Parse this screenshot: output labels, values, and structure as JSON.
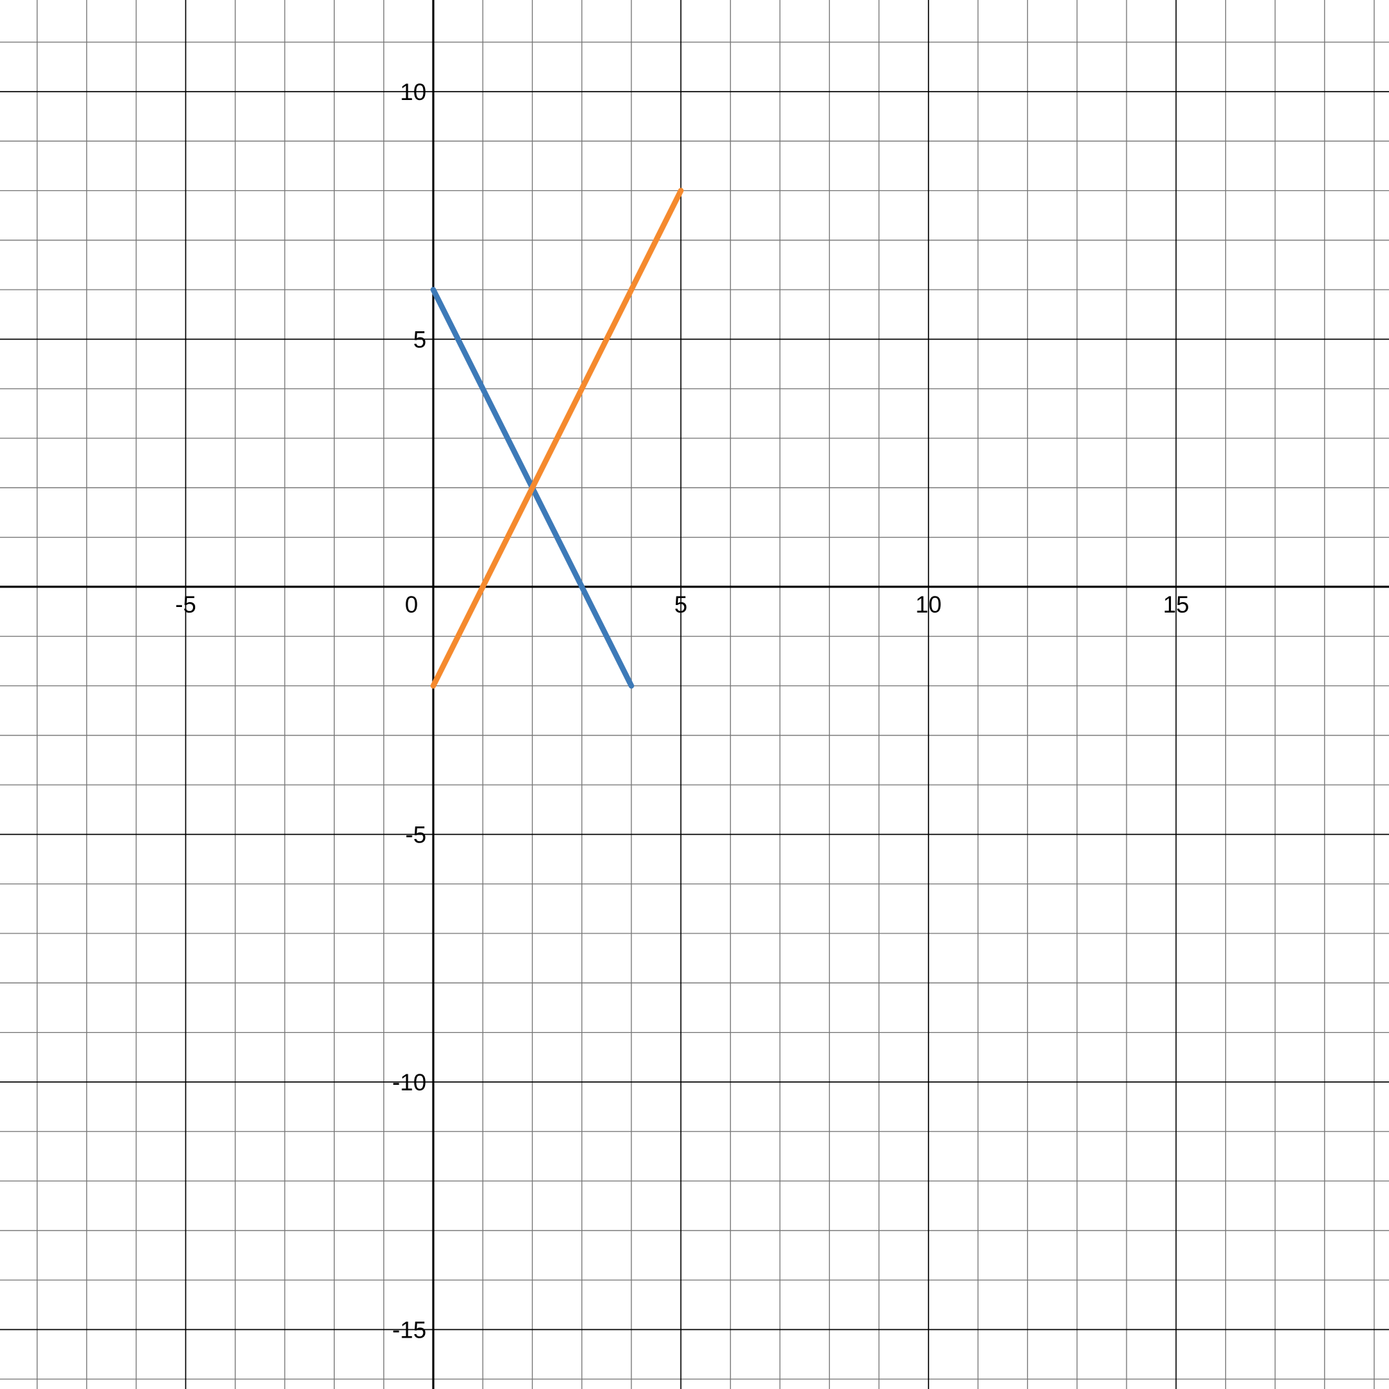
{
  "chart_data": {
    "type": "line",
    "title": "",
    "xlabel": "",
    "ylabel": "",
    "xlim": [
      -8.75,
      19.3
    ],
    "ylim": [
      -16.2,
      11.85
    ],
    "grid": true,
    "minor_step": 1,
    "major_step": 5,
    "x_ticks": [
      {
        "value": -5,
        "label": "-5"
      },
      {
        "value": 0,
        "label": "0"
      },
      {
        "value": 5,
        "label": "5"
      },
      {
        "value": 10,
        "label": "10"
      },
      {
        "value": 15,
        "label": "15"
      }
    ],
    "y_ticks": [
      {
        "value": 10,
        "label": "10"
      },
      {
        "value": 5,
        "label": "5"
      },
      {
        "value": -5,
        "label": "-5"
      },
      {
        "value": -10,
        "label": "-10"
      },
      {
        "value": -15,
        "label": "-15"
      }
    ],
    "series": [
      {
        "color": "#3d7ab8",
        "x": [
          0,
          4
        ],
        "y": [
          6,
          -2
        ]
      },
      {
        "color": "#f58a2e",
        "x": [
          0,
          5
        ],
        "y": [
          -2,
          8
        ]
      }
    ]
  }
}
